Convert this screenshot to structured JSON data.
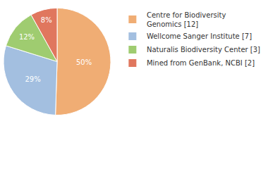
{
  "chart_data": {
    "type": "pie",
    "categories": [
      "Centre for Biodiversity Genomics [12]",
      "Wellcome Sanger Institute [7]",
      "Naturalis Biodiversity Center [3]",
      "Mined from GenBank, NCBI [2]"
    ],
    "values": [
      50,
      29,
      12,
      8
    ],
    "value_labels": [
      "50%",
      "29%",
      "12%",
      "8%"
    ],
    "colors": [
      "#f0ad74",
      "#a3bfe0",
      "#9fcc70",
      "#e0775e"
    ],
    "data_labels": true,
    "legend": "right"
  }
}
